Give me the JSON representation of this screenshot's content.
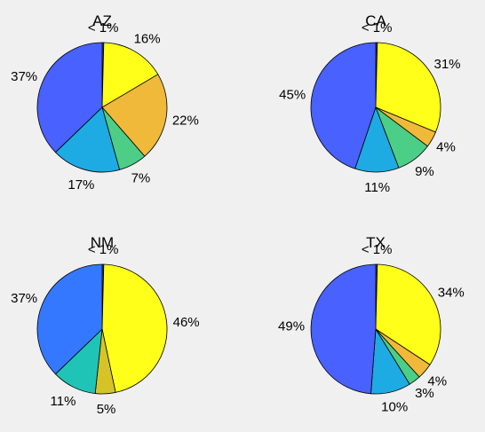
{
  "figure": {
    "background": "#f0f0f0"
  },
  "chart_data": [
    {
      "type": "pie",
      "title": "AZ",
      "labels": [
        "< 1%",
        "16%",
        "22%",
        "7%",
        "17%",
        "37%"
      ],
      "values": [
        0.4,
        16,
        22,
        7,
        17,
        37
      ],
      "colors": [
        "#3d3dbf",
        "#ffff1a",
        "#f0b93a",
        "#4cce86",
        "#1eaae2",
        "#4861ff"
      ]
    },
    {
      "type": "pie",
      "title": "CA",
      "labels": [
        "< 1%",
        "31%",
        "4%",
        "9%",
        "11%",
        "45%"
      ],
      "values": [
        0.4,
        31,
        4,
        9,
        11,
        45
      ],
      "colors": [
        "#3d3dbf",
        "#ffff1a",
        "#f0b93a",
        "#4cce86",
        "#1eaae2",
        "#4861ff"
      ]
    },
    {
      "type": "pie",
      "title": "NM",
      "labels": [
        "< 1%",
        "46%",
        "5%",
        "11%",
        "37%"
      ],
      "values": [
        0.4,
        46,
        5,
        11,
        37
      ],
      "colors": [
        "#3d3dbf",
        "#ffff1a",
        "#d5c428",
        "#20c4b6",
        "#3478ff"
      ]
    },
    {
      "type": "pie",
      "title": "TX",
      "labels": [
        "< 1%",
        "34%",
        "4%",
        "3%",
        "10%",
        "49%"
      ],
      "values": [
        0.4,
        34,
        4,
        3,
        10,
        49
      ],
      "colors": [
        "#3d3dbf",
        "#ffff1a",
        "#f0b93a",
        "#4cce86",
        "#1eaae2",
        "#4861ff"
      ]
    }
  ]
}
